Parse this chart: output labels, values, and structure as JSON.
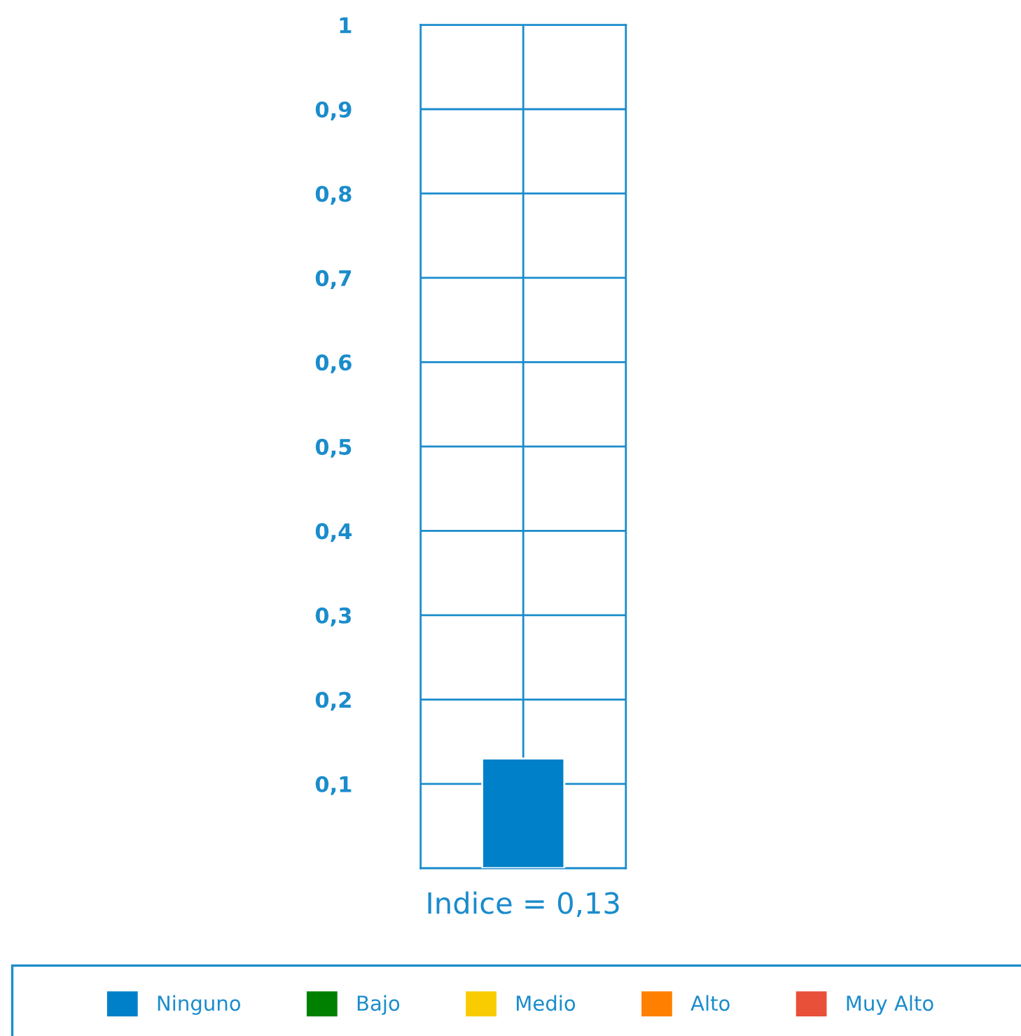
{
  "chart_data": {
    "type": "bar",
    "categories": [
      null
    ],
    "xlabel": "Indice = 0,13",
    "series": [
      {
        "name": "Ninguno",
        "color": "#0080c8",
        "values": [
          0.13
        ]
      },
      {
        "name": "Bajo",
        "color": "#008000",
        "values": [
          null
        ]
      },
      {
        "name": "Medio",
        "color": "#f8cc00",
        "values": [
          null
        ]
      },
      {
        "name": "Alto",
        "color": "#ff8000",
        "values": [
          null
        ]
      },
      {
        "name": "Muy Alto",
        "color": "#e8503a",
        "values": [
          null
        ]
      }
    ],
    "ylim": [
      0,
      1
    ],
    "yticks": [
      {
        "value": 0.1,
        "label": "0,1"
      },
      {
        "value": 0.2,
        "label": "0,2"
      },
      {
        "value": 0.3,
        "label": "0,3"
      },
      {
        "value": 0.4,
        "label": "0,4"
      },
      {
        "value": 0.5,
        "label": "0,5"
      },
      {
        "value": 0.6,
        "label": "0,6"
      },
      {
        "value": 0.7,
        "label": "0,7"
      },
      {
        "value": 0.8,
        "label": "0,8"
      },
      {
        "value": 0.9,
        "label": "0,9"
      },
      {
        "value": 1,
        "label": "1"
      }
    ],
    "grid": true,
    "legend": "bottom",
    "tick_labels": "y"
  }
}
